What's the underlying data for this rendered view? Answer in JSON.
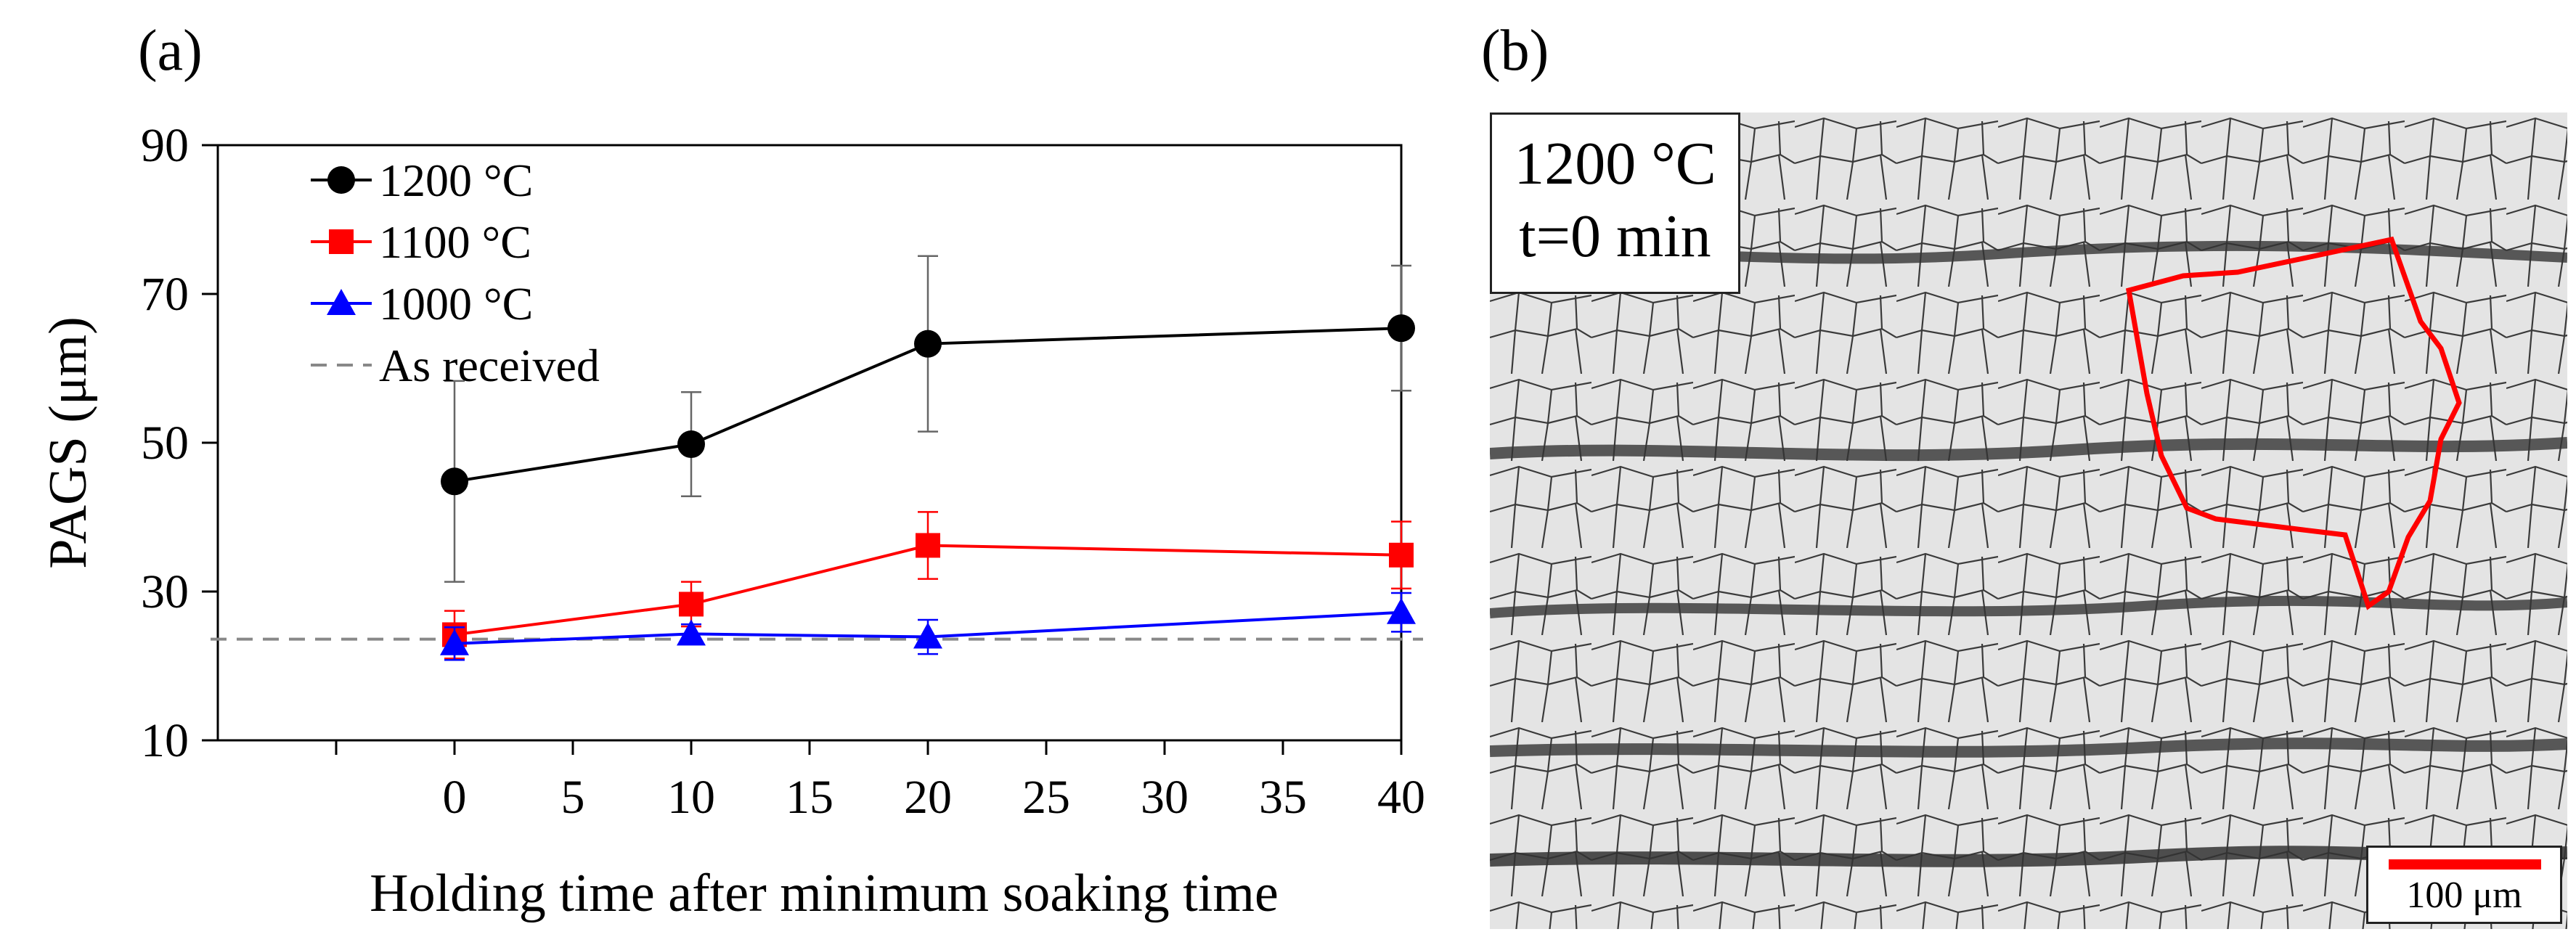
{
  "panel_a_label": "(a)",
  "panel_b_label": "(b)",
  "chart_data": {
    "type": "line",
    "title": "",
    "xlabel": "Holding time after minimum soaking time",
    "ylabel": "PAGS (μm)",
    "xlim": [
      -10,
      40
    ],
    "ylim": [
      10,
      90
    ],
    "xticks": [
      0,
      5,
      10,
      15,
      20,
      25,
      30,
      35,
      40
    ],
    "yticks": [
      10,
      30,
      50,
      70,
      90
    ],
    "grid": false,
    "legend_position": "top-left",
    "series": [
      {
        "name": "1200 °C",
        "color": "#000000",
        "marker": "circle",
        "x": [
          0,
          10,
          20,
          40
        ],
        "y": [
          44.8,
          49.8,
          63.3,
          65.4
        ],
        "err": [
          13.5,
          7.0,
          11.8,
          8.4
        ]
      },
      {
        "name": "1100 °C",
        "color": "#ff0000",
        "marker": "square",
        "x": [
          0,
          10,
          20,
          40
        ],
        "y": [
          24.2,
          28.3,
          36.2,
          34.9
        ],
        "err": [
          3.2,
          3.0,
          4.5,
          4.5
        ]
      },
      {
        "name": "1000 °C",
        "color": "#0000ff",
        "marker": "triangle",
        "x": [
          0,
          10,
          20,
          40
        ],
        "y": [
          23.0,
          24.3,
          23.9,
          27.2
        ],
        "err": [
          2.2,
          1.3,
          2.3,
          2.6
        ]
      }
    ],
    "reference_line": {
      "name": "As received",
      "y": 23.6,
      "color": "#888888",
      "style": "dashed"
    }
  },
  "micrograph": {
    "temperature": "1200 °C",
    "time": "t=0 min",
    "scale_label": "100 μm",
    "highlight_color": "#ff0000"
  }
}
